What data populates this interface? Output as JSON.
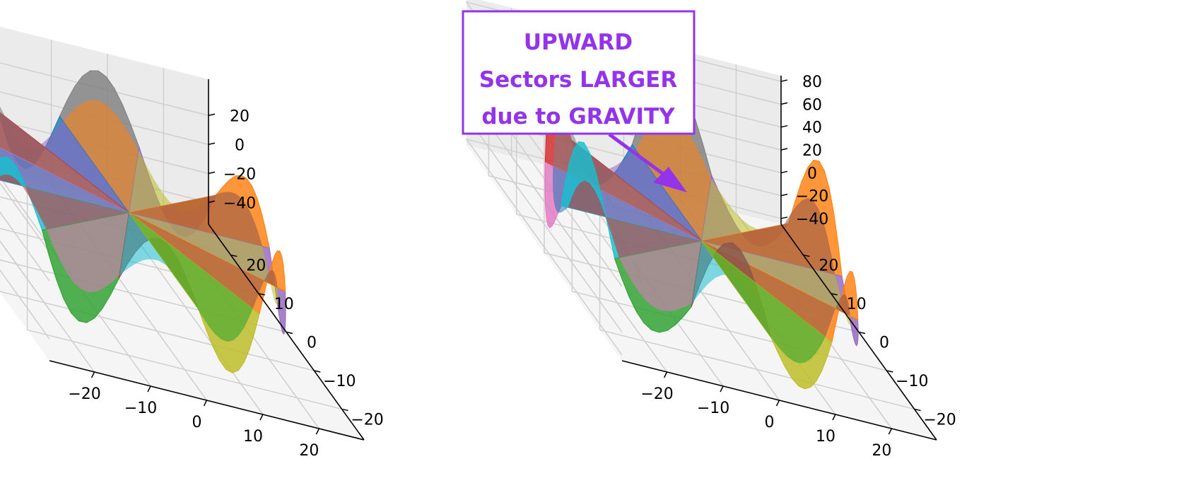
{
  "chart_data": [
    {
      "type": "surface3d",
      "title": "",
      "xlabel": "",
      "ylabel": "",
      "zlabel": "",
      "x_ticks": [
        -20,
        -10,
        0,
        10,
        20
      ],
      "y_ticks": [
        -20,
        -10,
        0,
        10,
        20
      ],
      "z_ticks": [
        -40,
        -20,
        0,
        20
      ],
      "xlim": [
        -28,
        28
      ],
      "ylim": [
        -28,
        28
      ],
      "zlim": [
        -55,
        45
      ],
      "grid": true,
      "sectors": 12,
      "sector_peaks": [
        30,
        -45,
        40,
        -40,
        38,
        -42,
        30,
        -45,
        40,
        -40,
        38,
        -42
      ],
      "colors": [
        "#1f77b4",
        "#ff7f0e",
        "#2ca02c",
        "#d62728",
        "#9467bd",
        "#8c564b",
        "#e377c2",
        "#7f7f7f",
        "#bcbd22",
        "#17becf"
      ]
    },
    {
      "type": "surface3d",
      "title": "",
      "xlabel": "",
      "ylabel": "",
      "zlabel": "",
      "x_ticks": [
        -20,
        -10,
        0,
        10,
        20
      ],
      "y_ticks": [
        -20,
        -10,
        0,
        10,
        20
      ],
      "z_ticks": [
        -40,
        -20,
        0,
        20,
        40,
        60,
        80
      ],
      "xlim": [
        -28,
        28
      ],
      "ylim": [
        -28,
        28
      ],
      "zlim": [
        -45,
        85
      ],
      "grid": true,
      "sectors": 12,
      "sector_peaks": [
        78,
        -40,
        72,
        -40,
        55,
        -38,
        78,
        -40,
        72,
        -40,
        55,
        -38
      ],
      "colors": [
        "#1f77b4",
        "#ff7f0e",
        "#2ca02c",
        "#d62728",
        "#9467bd",
        "#8c564b",
        "#e377c2",
        "#7f7f7f",
        "#bcbd22",
        "#17becf"
      ]
    }
  ],
  "annotation": {
    "lines": [
      "UPWARD",
      "Sectors LARGER",
      "due to GRAVITY"
    ],
    "color": "#9333ea"
  }
}
